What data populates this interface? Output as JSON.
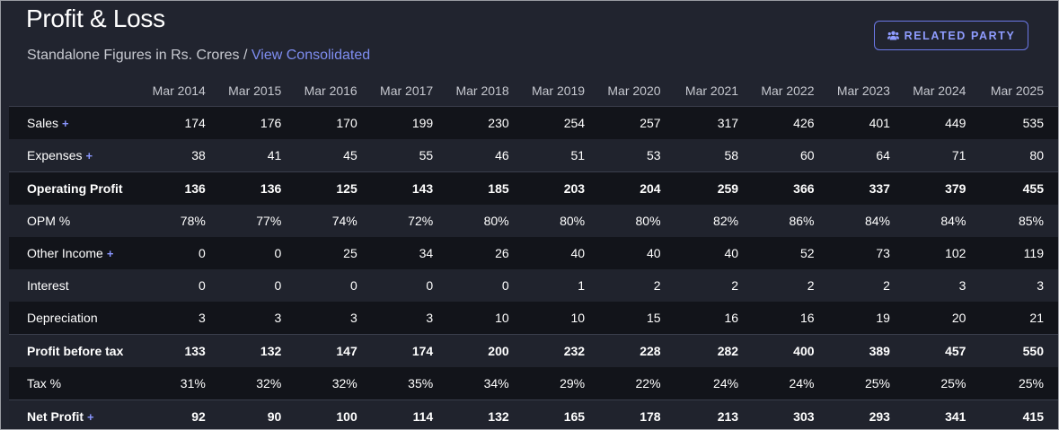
{
  "header": {
    "title": "Profit & Loss",
    "subtitle_text": "Standalone Figures in Rs. Crores /",
    "subtitle_link": "View Consolidated",
    "related_party_label": "RELATED PARTY",
    "related_party_icon": "people-icon"
  },
  "colors": {
    "accent": "#7e8df0",
    "row_dark": "#12141a",
    "row_light": "#20232d"
  },
  "table": {
    "columns": [
      "Mar 2014",
      "Mar 2015",
      "Mar 2016",
      "Mar 2017",
      "Mar 2018",
      "Mar 2019",
      "Mar 2020",
      "Mar 2021",
      "Mar 2022",
      "Mar 2023",
      "Mar 2024",
      "Mar 2025"
    ],
    "rows": [
      {
        "label": "Sales",
        "expandable": true,
        "bold": false,
        "values": [
          "174",
          "176",
          "170",
          "199",
          "230",
          "254",
          "257",
          "317",
          "426",
          "401",
          "449",
          "535"
        ]
      },
      {
        "label": "Expenses",
        "expandable": true,
        "bold": false,
        "values": [
          "38",
          "41",
          "45",
          "55",
          "46",
          "51",
          "53",
          "58",
          "60",
          "64",
          "71",
          "80"
        ]
      },
      {
        "label": "Operating Profit",
        "expandable": false,
        "bold": true,
        "values": [
          "136",
          "136",
          "125",
          "143",
          "185",
          "203",
          "204",
          "259",
          "366",
          "337",
          "379",
          "455"
        ]
      },
      {
        "label": "OPM %",
        "expandable": false,
        "bold": false,
        "values": [
          "78%",
          "77%",
          "74%",
          "72%",
          "80%",
          "80%",
          "80%",
          "82%",
          "86%",
          "84%",
          "84%",
          "85%"
        ]
      },
      {
        "label": "Other Income",
        "expandable": true,
        "bold": false,
        "values": [
          "0",
          "0",
          "25",
          "34",
          "26",
          "40",
          "40",
          "40",
          "52",
          "73",
          "102",
          "119"
        ]
      },
      {
        "label": "Interest",
        "expandable": false,
        "bold": false,
        "values": [
          "0",
          "0",
          "0",
          "0",
          "0",
          "1",
          "2",
          "2",
          "2",
          "2",
          "3",
          "3"
        ]
      },
      {
        "label": "Depreciation",
        "expandable": false,
        "bold": false,
        "values": [
          "3",
          "3",
          "3",
          "3",
          "10",
          "10",
          "15",
          "16",
          "16",
          "19",
          "20",
          "21"
        ]
      },
      {
        "label": "Profit before tax",
        "expandable": false,
        "bold": true,
        "values": [
          "133",
          "132",
          "147",
          "174",
          "200",
          "232",
          "228",
          "282",
          "400",
          "389",
          "457",
          "550"
        ]
      },
      {
        "label": "Tax %",
        "expandable": false,
        "bold": false,
        "values": [
          "31%",
          "32%",
          "32%",
          "35%",
          "34%",
          "29%",
          "22%",
          "24%",
          "24%",
          "25%",
          "25%",
          "25%"
        ]
      },
      {
        "label": "Net Profit",
        "expandable": true,
        "bold": true,
        "values": [
          "92",
          "90",
          "100",
          "114",
          "132",
          "165",
          "178",
          "213",
          "303",
          "293",
          "341",
          "415"
        ]
      }
    ]
  }
}
